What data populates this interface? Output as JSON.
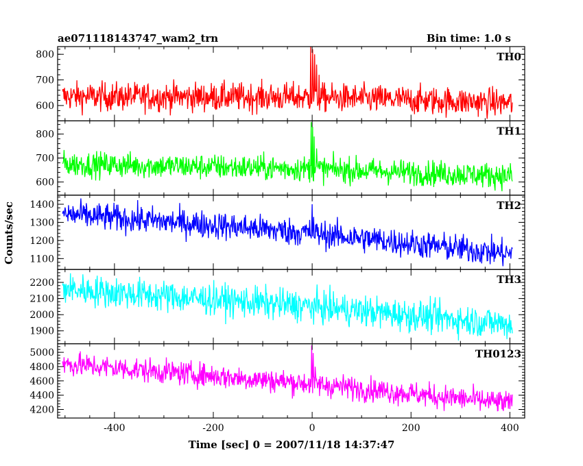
{
  "chart_data": {
    "type": "line",
    "title_left": "ae071118143747_wam2_trn",
    "title_right": "Bin time: 1.0 s",
    "xlabel": "Time [sec] 0 = 2007/11/18 14:37:47",
    "ylabel": "Counts/sec",
    "xlim": [
      -515,
      430
    ],
    "xticks": [
      -400,
      -200,
      0,
      200,
      400
    ],
    "grid": false,
    "panels": [
      {
        "name": "TH0",
        "color": "#ff0000",
        "ylim": [
          540,
          830
        ],
        "yticks": [
          600,
          700,
          800
        ],
        "trend": [
          [
            -505,
            635
          ],
          [
            0,
            632
          ],
          [
            405,
            610
          ]
        ],
        "noise": 40,
        "spikes": [
          [
            -3,
            830
          ],
          [
            1,
            820
          ],
          [
            5,
            800
          ],
          [
            9,
            760
          ],
          [
            14,
            720
          ]
        ]
      },
      {
        "name": "TH1",
        "color": "#00ff00",
        "ylim": [
          545,
          855
        ],
        "yticks": [
          600,
          700,
          800
        ],
        "trend": [
          [
            -505,
            675
          ],
          [
            0,
            655
          ],
          [
            405,
            625
          ]
        ],
        "noise": 38,
        "spikes": [
          [
            -2,
            850
          ],
          [
            1,
            830
          ],
          [
            4,
            790
          ],
          [
            9,
            740
          ]
        ]
      },
      {
        "name": "TH2",
        "color": "#0000ff",
        "ylim": [
          1040,
          1450
        ],
        "yticks": [
          1100,
          1200,
          1300,
          1400
        ],
        "trend": [
          [
            -505,
            1345
          ],
          [
            -200,
            1285
          ],
          [
            0,
            1240
          ],
          [
            405,
            1125
          ]
        ],
        "noise": 55,
        "spikes": [
          [
            0,
            1400
          ],
          [
            3,
            1330
          ]
        ]
      },
      {
        "name": "TH3",
        "color": "#00ffff",
        "ylim": [
          1820,
          2280
        ],
        "yticks": [
          1900,
          2000,
          2100,
          2200
        ],
        "trend": [
          [
            -505,
            2160
          ],
          [
            0,
            2050
          ],
          [
            405,
            1940
          ]
        ],
        "noise": 70,
        "spikes": []
      },
      {
        "name": "TH0123",
        "color": "#ff00ff",
        "ylim": [
          4080,
          5120
        ],
        "yticks": [
          4200,
          4400,
          4600,
          4800,
          5000
        ],
        "trend": [
          [
            -505,
            4840
          ],
          [
            0,
            4560
          ],
          [
            405,
            4280
          ]
        ],
        "noise": 120,
        "spikes": [
          [
            -1,
            5100
          ],
          [
            2,
            4990
          ],
          [
            6,
            4800
          ]
        ]
      }
    ]
  }
}
